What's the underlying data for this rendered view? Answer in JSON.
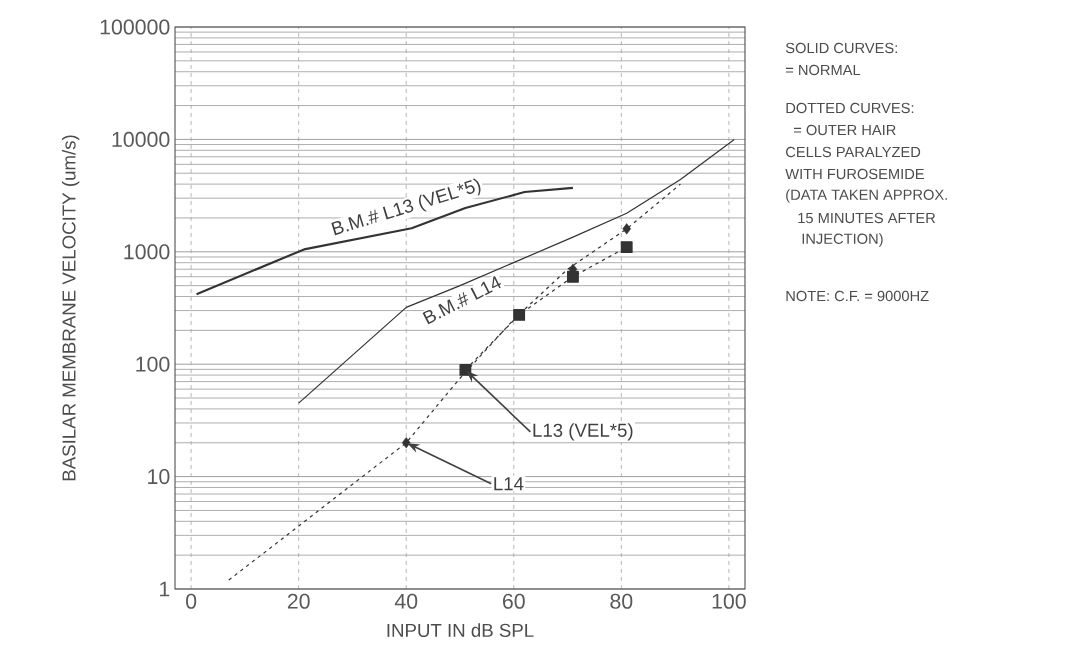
{
  "chart_data": {
    "type": "line",
    "xlabel": "INPUT IN dB SPL",
    "ylabel": "BASILAR MEMBRANE VELOCITY (um/s)",
    "log": true,
    "grid": true,
    "xlim": [
      -3,
      103
    ],
    "ylim": [
      1,
      100000
    ],
    "xticks": [
      0,
      20,
      40,
      60,
      80,
      100
    ],
    "yticks": [
      1,
      10,
      100,
      1000,
      10000,
      100000
    ],
    "series": [
      {
        "x": [
          1,
          21,
          41,
          51,
          62,
          71
        ],
        "values": [
          420,
          1050,
          1620,
          2450,
          3400,
          3700
        ],
        "color": "#333333",
        "line_style": "solid",
        "marker": "none"
      },
      {
        "x": [
          20,
          40,
          50,
          71,
          81,
          91,
          101
        ],
        "values": [
          45,
          320,
          500,
          1350,
          2200,
          4400,
          10000
        ],
        "color": "#333333",
        "line_style": "solid",
        "marker": "none"
      },
      {
        "x": [
          51,
          61,
          71,
          81
        ],
        "values": [
          89,
          275,
          600,
          1100
        ],
        "color": "#333333",
        "line_style": "dotted",
        "marker": "square"
      },
      {
        "x": [
          7,
          40,
          50,
          60,
          70,
          81,
          91
        ],
        "values": [
          1.2,
          20,
          75,
          250,
          700,
          1600,
          4000
        ],
        "color": "#333333",
        "line_style": "dotted",
        "marker": "none"
      },
      {
        "type": "scatter",
        "x": [
          40,
          71,
          81
        ],
        "values": [
          20,
          700,
          1600
        ],
        "color": "#333333",
        "marker": "diamond"
      }
    ],
    "annotations": [
      {
        "text": "B.M.# L13 (VEL*5)",
        "x": 41,
        "y": 1620
      },
      "B.M.# L14",
      {
        "text": "L13 (VEL*5)",
        "x": 51,
        "y": 89
      },
      {
        "text": "L14",
        "x": 40,
        "y": 20
      },
      "SOLID CURVES:",
      "= NORMAL",
      "DOTTED CURVES:",
      "= OUTER HAIR",
      "CELLS PARALYZED",
      "WITH FUROSEMIDE",
      "(DATA TAKEN APPROX.",
      "15 MINUTES AFTER",
      "INJECTION)",
      "NOTE:  C.F. = 9000HZ"
    ]
  }
}
